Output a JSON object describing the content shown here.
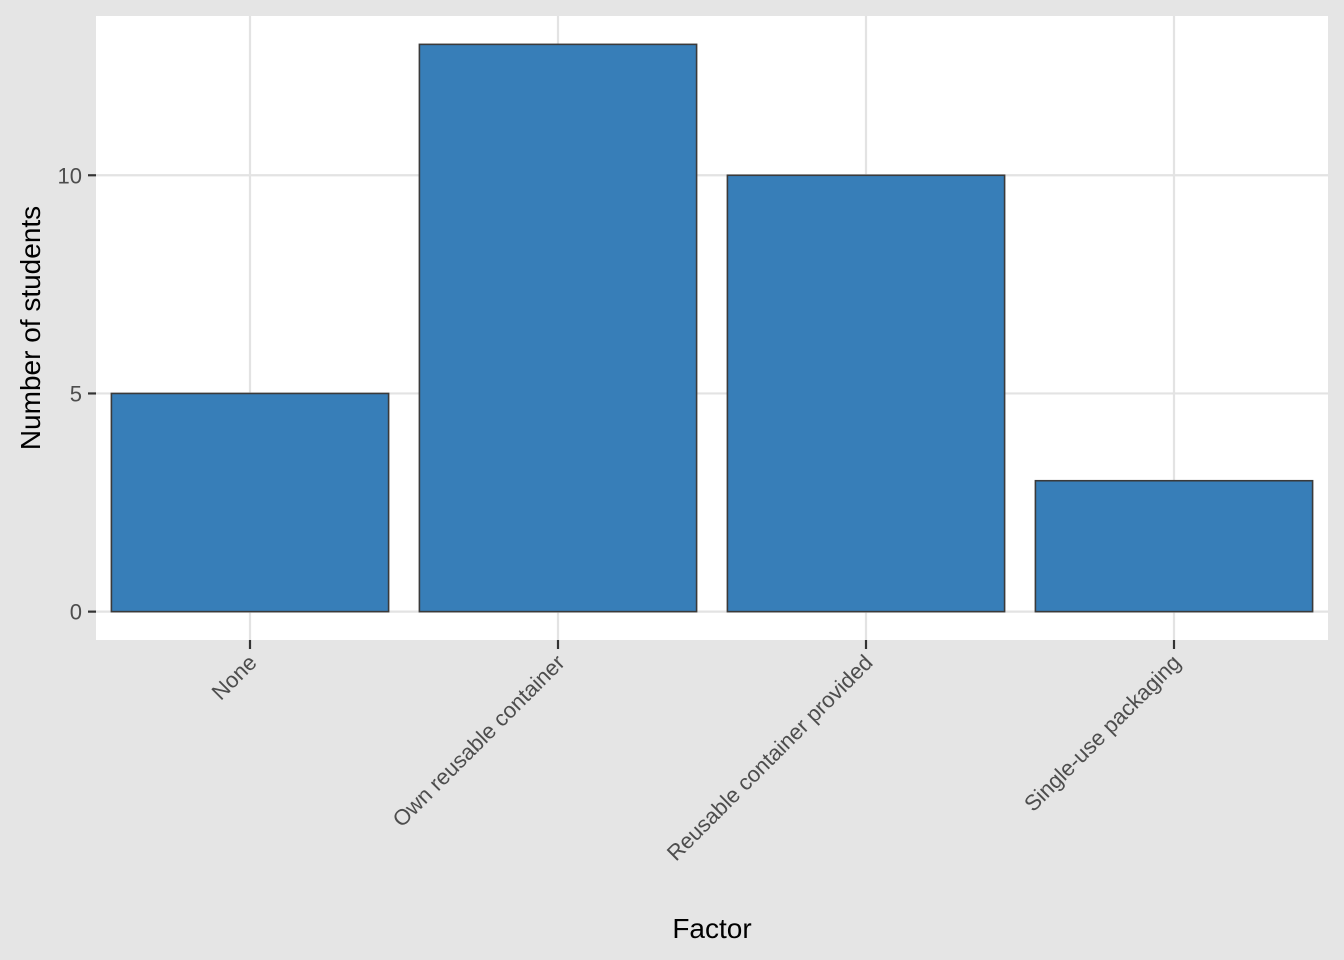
{
  "chart_data": {
    "type": "bar",
    "categories": [
      "None",
      "Own reusable container",
      "Reusable container provided",
      "Single-use packaging"
    ],
    "values": [
      5,
      13,
      10,
      3
    ],
    "title": "",
    "xlabel": "Factor",
    "ylabel": "Number of students",
    "ylim": [
      -0.65,
      13.65
    ],
    "yticks": [
      0,
      5,
      10
    ],
    "grid": true,
    "legend": "none",
    "colors": {
      "bar_fill": "#377eb8",
      "bar_outline": "#3a3a3a",
      "panel_background": "#ffffff",
      "plot_background": "#e5e5e5",
      "grid": "#e3e3e3",
      "tick_text": "#4d4d4d",
      "axis_title": "#000000"
    }
  }
}
